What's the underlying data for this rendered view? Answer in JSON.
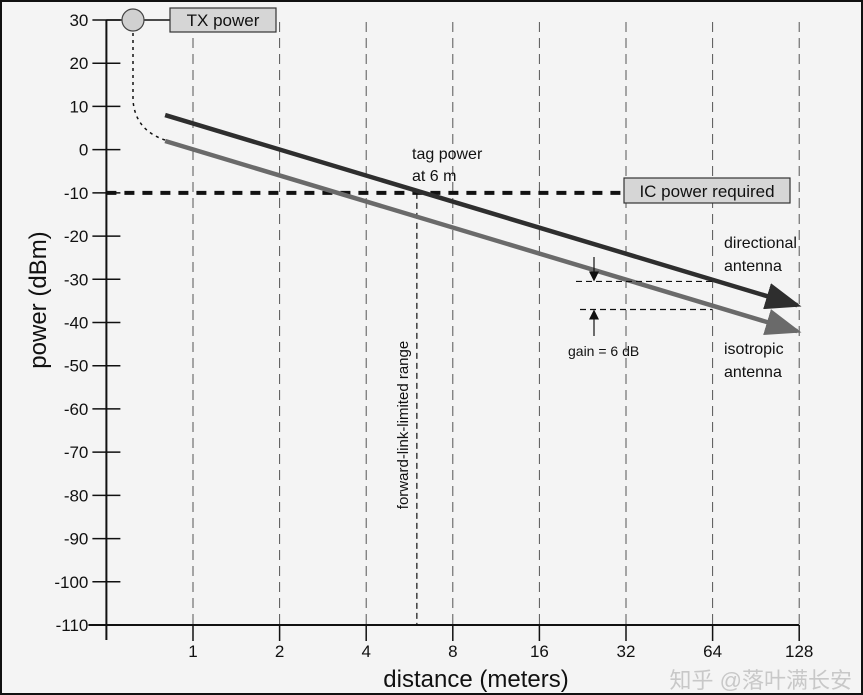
{
  "chart_data": {
    "type": "line",
    "title": "",
    "xlabel": "distance (meters)",
    "ylabel": "power (dBm)",
    "xscale": "log2",
    "xticks": [
      1,
      2,
      4,
      8,
      16,
      32,
      64,
      128
    ],
    "xlim": [
      0.5,
      128
    ],
    "yticks": [
      30,
      20,
      10,
      0,
      -10,
      -20,
      -30,
      -40,
      -50,
      -60,
      -70,
      -80,
      -90,
      -100,
      -110
    ],
    "ylim": [
      -110,
      30
    ],
    "grid": "vertical dashed at x ticks",
    "series": [
      {
        "name": "directional antenna",
        "label_lines": [
          "directional",
          "antenna"
        ],
        "color": "#2e2e2e",
        "x": [
          0.8,
          128
        ],
        "y": [
          8,
          -36
        ],
        "slope_db_per_octave": -6
      },
      {
        "name": "isotropic antenna",
        "label_lines": [
          "isotropic",
          "antenna"
        ],
        "color": "#6a6a6a",
        "x": [
          0.8,
          128
        ],
        "y": [
          2,
          -42
        ],
        "slope_db_per_octave": -6
      }
    ],
    "tx_power": {
      "label": "TX power",
      "value": 30
    },
    "ic_power_required": {
      "label": "IC power required",
      "value": -10
    },
    "forward_link_range": {
      "label": "forward-link-limited range",
      "distance": 6
    },
    "tag_power_annotation": [
      "tag power",
      "at 6 m"
    ],
    "gain_annotation": {
      "label": "gain = 6 dB",
      "value": 6,
      "at_distance": 64,
      "upper": -30.5,
      "lower": -37
    }
  },
  "watermark": "知乎 @落叶满长安"
}
